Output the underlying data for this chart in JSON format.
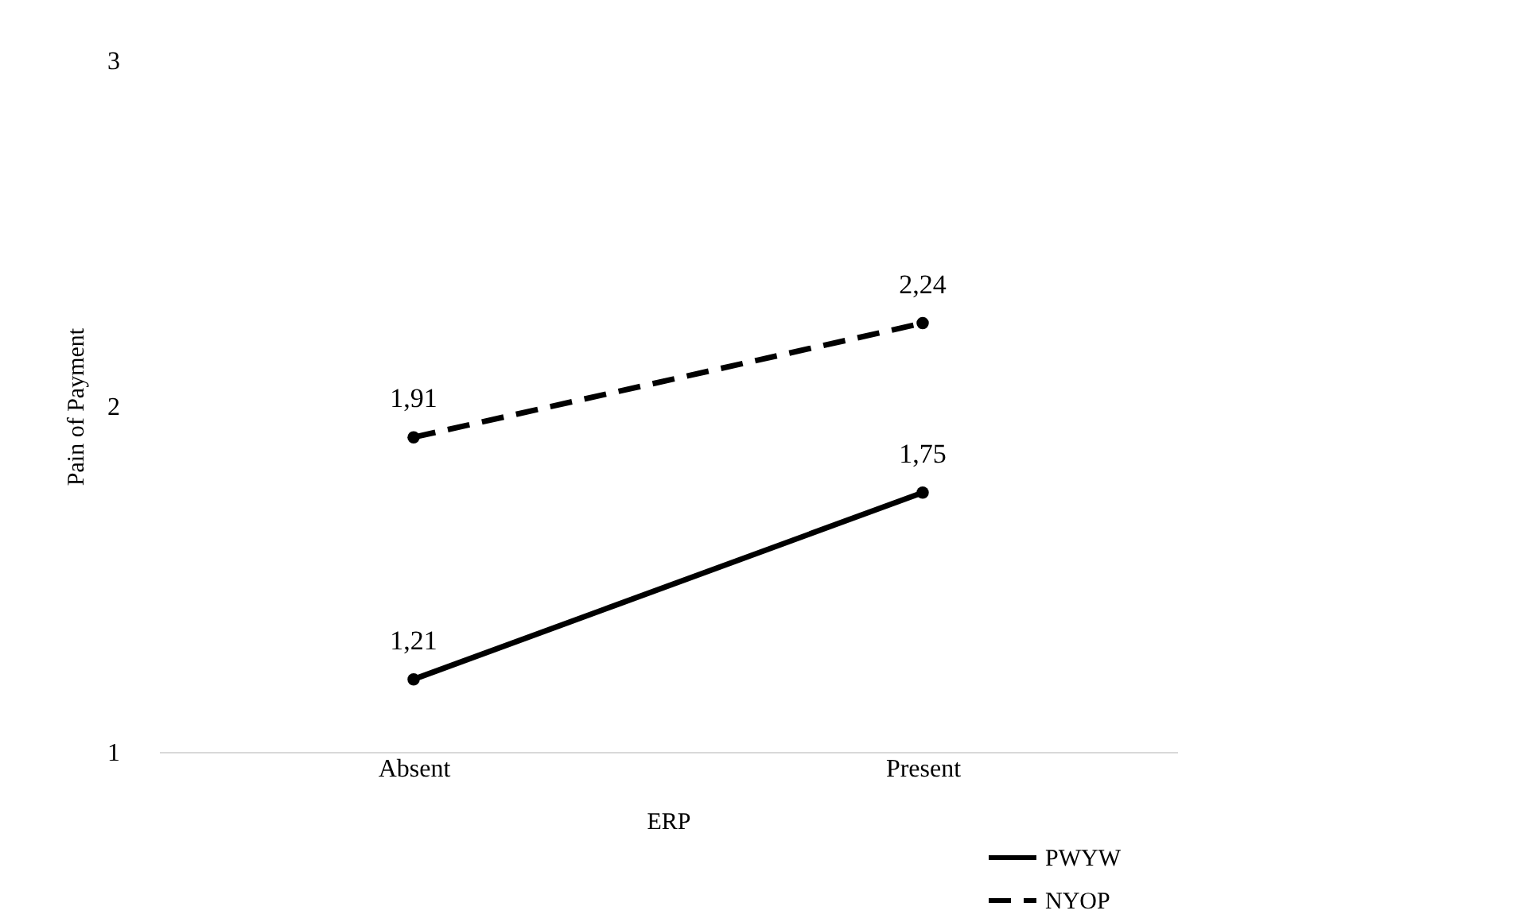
{
  "chart_data": {
    "type": "line",
    "xlabel": "ERP",
    "ylabel": "Pain of Payment",
    "categories": [
      "Absent",
      "Present"
    ],
    "series": [
      {
        "name": "PWYW",
        "color": "#000000",
        "values": [
          1.21,
          1.75
        ],
        "value_labels": [
          "1,21",
          "1,75"
        ],
        "line_style": "solid"
      },
      {
        "name": "NYOP",
        "color": "#000000",
        "values": [
          1.91,
          2.24
        ],
        "value_labels": [
          "1,91",
          "2,24"
        ],
        "line_style": "dashed"
      }
    ],
    "ylim": [
      1,
      3
    ],
    "yticks": [
      1,
      2,
      3
    ],
    "marker": "circle",
    "legend": "bottom right",
    "grid": false
  }
}
